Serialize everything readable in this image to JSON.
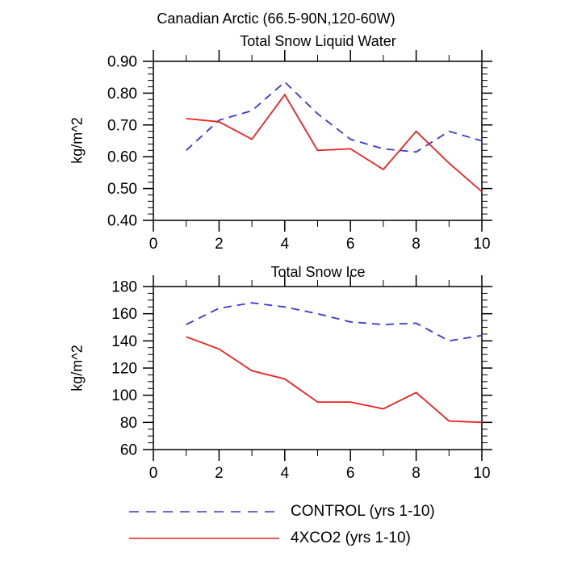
{
  "header": {
    "title": "Canadian Arctic (66.5-90N,120-60W)"
  },
  "legend": {
    "items": [
      {
        "label": "CONTROL (yrs 1-10)",
        "color": "#3838d0",
        "style": "dashed"
      },
      {
        "label": "4XCO2 (yrs 1-10)",
        "color": "#ef2020",
        "style": "solid"
      }
    ]
  },
  "chart_data": [
    {
      "type": "line",
      "title": "Total Snow Liquid Water",
      "ylabel": "kg/m^2",
      "xlabel": "",
      "x": [
        1,
        2,
        3,
        4,
        5,
        6,
        7,
        8,
        9,
        10
      ],
      "xlim": [
        0,
        10
      ],
      "ylim": [
        0.4,
        0.9
      ],
      "xticks": [
        0,
        2,
        4,
        6,
        8,
        10
      ],
      "xtick_labels": [
        "0",
        "2",
        "4",
        "6",
        "8",
        "10"
      ],
      "x_minor_step": 1,
      "yticks": [
        0.4,
        0.5,
        0.6,
        0.7,
        0.8,
        0.9
      ],
      "ytick_labels": [
        "0.40",
        "0.50",
        "0.60",
        "0.70",
        "0.80",
        "0.90"
      ],
      "y_minor_step": 0.02,
      "grid": false,
      "legend_position": "below-figure",
      "series": [
        {
          "name": "CONTROL (yrs 1-10)",
          "color": "#3838d0",
          "dashed": true,
          "values": [
            0.62,
            0.715,
            0.745,
            0.835,
            0.735,
            0.655,
            0.625,
            0.615,
            0.68,
            0.65
          ]
        },
        {
          "name": "4XCO2 (yrs 1-10)",
          "color": "#ef2020",
          "dashed": false,
          "values": [
            0.72,
            0.71,
            0.655,
            0.795,
            0.62,
            0.625,
            0.56,
            0.68,
            0.58,
            0.49
          ]
        }
      ]
    },
    {
      "type": "line",
      "title": "Total Snow Ice",
      "ylabel": "kg/m^2",
      "xlabel": "",
      "x": [
        1,
        2,
        3,
        4,
        5,
        6,
        7,
        8,
        9,
        10
      ],
      "xlim": [
        0,
        10
      ],
      "ylim": [
        60,
        180
      ],
      "xticks": [
        0,
        2,
        4,
        6,
        8,
        10
      ],
      "xtick_labels": [
        "0",
        "2",
        "4",
        "6",
        "8",
        "10"
      ],
      "x_minor_step": 1,
      "yticks": [
        60,
        80,
        100,
        120,
        140,
        160,
        180
      ],
      "ytick_labels": [
        "60",
        "80",
        "100",
        "120",
        "140",
        "160",
        "180"
      ],
      "y_minor_step": 5,
      "grid": false,
      "legend_position": "below-figure",
      "series": [
        {
          "name": "CONTROL (yrs 1-10)",
          "color": "#3838d0",
          "dashed": true,
          "values": [
            152,
            164,
            168,
            165,
            160,
            154,
            152,
            153,
            140,
            144
          ]
        },
        {
          "name": "4XCO2 (yrs 1-10)",
          "color": "#ef2020",
          "dashed": false,
          "values": [
            143,
            134,
            118,
            112,
            95,
            95,
            90,
            102,
            81,
            80
          ]
        }
      ]
    }
  ]
}
